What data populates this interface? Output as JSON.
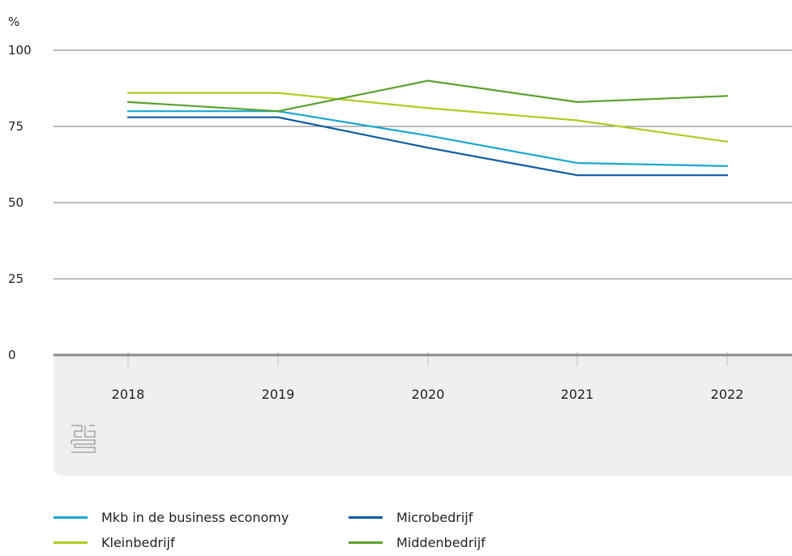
{
  "chart_data": {
    "type": "line",
    "x": [
      "2018",
      "2019",
      "2020",
      "2021",
      "2022"
    ],
    "ylabel": "%",
    "ylim": [
      0,
      100
    ],
    "yticks": [
      0,
      25,
      50,
      75,
      100
    ],
    "grid": true,
    "legend_position": "bottom",
    "series": [
      {
        "name": "Mkb in de business economy",
        "color": "#1aa6d0",
        "values": [
          80,
          80,
          72,
          63,
          62
        ]
      },
      {
        "name": "Microbedrijf",
        "color": "#0b5aa5",
        "values": [
          78,
          78,
          68,
          59,
          59
        ]
      },
      {
        "name": "Kleinbedrijf",
        "color": "#b0cb1f",
        "values": [
          86,
          86,
          81,
          77,
          70
        ]
      },
      {
        "name": "Middenbedrijf",
        "color": "#5aa22e",
        "values": [
          83,
          80,
          90,
          83,
          85
        ]
      }
    ]
  },
  "logo": {
    "text": "cbs",
    "icon": "cbs-logo-icon"
  },
  "colors": {
    "axis_band": "#efefef",
    "axis_line": "#8a8a8a",
    "grid": "#777777"
  }
}
